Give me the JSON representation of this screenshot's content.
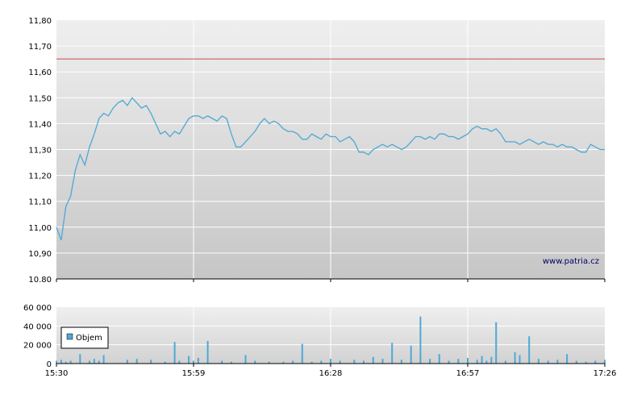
{
  "watermark": "www.patria.cz",
  "legend_label": "Objem",
  "colors": {
    "price_line": "#4ea8d6",
    "volume_bar": "#4ea8d6",
    "reference_line": "#c0504d",
    "grid": "#ffffff",
    "axis": "#000000"
  },
  "chart_data": [
    {
      "type": "line",
      "title": "",
      "xlabel": "",
      "ylabel": "",
      "ylim": [
        10.8,
        11.8
      ],
      "y_ticks": [
        "11,80",
        "11,70",
        "11,60",
        "11,50",
        "11,40",
        "11,30",
        "11,20",
        "11,10",
        "11,00",
        "10,90",
        "10.80"
      ],
      "x_ticks": [
        "15:30",
        "15:59",
        "16:28",
        "16:57",
        "17:26"
      ],
      "xlim": [
        "15:30",
        "17:26"
      ],
      "grid": true,
      "reference_line": 11.65,
      "series": [
        {
          "x": [
            "15:30",
            "15:31",
            "15:32",
            "15:33",
            "15:34",
            "15:35",
            "15:36",
            "15:37",
            "15:38",
            "15:39",
            "15:40",
            "15:41",
            "15:42",
            "15:43",
            "15:44",
            "15:45",
            "15:46",
            "15:47",
            "15:48",
            "15:49",
            "15:50",
            "15:51",
            "15:52",
            "15:53",
            "15:54",
            "15:55",
            "15:56",
            "15:57",
            "15:58",
            "15:59",
            "16:00",
            "16:01",
            "16:02",
            "16:03",
            "16:04",
            "16:05",
            "16:06",
            "16:07",
            "16:08",
            "16:09",
            "16:10",
            "16:11",
            "16:12",
            "16:13",
            "16:14",
            "16:15",
            "16:16",
            "16:17",
            "16:18",
            "16:19",
            "16:20",
            "16:21",
            "16:22",
            "16:23",
            "16:24",
            "16:25",
            "16:26",
            "16:27",
            "16:28",
            "16:29",
            "16:30",
            "16:31",
            "16:32",
            "16:33",
            "16:34",
            "16:35",
            "16:36",
            "16:37",
            "16:38",
            "16:39",
            "16:40",
            "16:41",
            "16:42",
            "16:43",
            "16:44",
            "16:45",
            "16:46",
            "16:47",
            "16:48",
            "16:49",
            "16:50",
            "16:51",
            "16:52",
            "16:53",
            "16:54",
            "16:55",
            "16:56",
            "16:57",
            "16:58",
            "16:59",
            "17:00",
            "17:01",
            "17:02",
            "17:03",
            "17:04",
            "17:05",
            "17:06",
            "17:07",
            "17:08",
            "17:09",
            "17:10",
            "17:11",
            "17:12",
            "17:13",
            "17:14",
            "17:15",
            "17:16",
            "17:17",
            "17:18",
            "17:19",
            "17:20",
            "17:21",
            "17:22",
            "17:23",
            "17:24",
            "17:25",
            "17:26"
          ],
          "values": [
            11.0,
            10.95,
            11.08,
            11.12,
            11.22,
            11.28,
            11.24,
            11.31,
            11.36,
            11.42,
            11.44,
            11.43,
            11.46,
            11.48,
            11.49,
            11.47,
            11.5,
            11.48,
            11.46,
            11.47,
            11.44,
            11.4,
            11.36,
            11.37,
            11.35,
            11.37,
            11.36,
            11.39,
            11.42,
            11.43,
            11.43,
            11.42,
            11.43,
            11.42,
            11.41,
            11.43,
            11.42,
            11.36,
            11.31,
            11.31,
            11.33,
            11.35,
            11.37,
            11.4,
            11.42,
            11.4,
            11.41,
            11.4,
            11.38,
            11.37,
            11.37,
            11.36,
            11.34,
            11.34,
            11.36,
            11.35,
            11.34,
            11.36,
            11.35,
            11.35,
            11.33,
            11.34,
            11.35,
            11.33,
            11.29,
            11.29,
            11.28,
            11.3,
            11.31,
            11.32,
            11.31,
            11.32,
            11.31,
            11.3,
            11.31,
            11.33,
            11.35,
            11.35,
            11.34,
            11.35,
            11.34,
            11.36,
            11.36,
            11.35,
            11.35,
            11.34,
            11.35,
            11.36,
            11.38,
            11.39,
            11.38,
            11.38,
            11.37,
            11.38,
            11.36,
            11.33,
            11.33,
            11.33,
            11.32,
            11.33,
            11.34,
            11.33,
            11.32,
            11.33,
            11.32,
            11.32,
            11.31,
            11.32,
            11.31,
            11.31,
            11.3,
            11.29,
            11.29,
            11.32,
            11.31,
            11.3,
            11.3
          ]
        }
      ]
    },
    {
      "type": "bar",
      "title": "",
      "xlabel": "",
      "ylabel": "",
      "ylim": [
        0,
        60000
      ],
      "y_ticks": [
        "60 000",
        "40 000",
        "20 000",
        "0"
      ],
      "x_ticks": [
        "15:30",
        "15:59",
        "16:28",
        "16:57",
        "17:26"
      ],
      "xlim": [
        "15:30",
        "17:26"
      ],
      "grid": true,
      "legend": "top-left",
      "series": [
        {
          "name": "Objem",
          "x": [
            "15:30",
            "15:31",
            "15:32",
            "15:33",
            "15:35",
            "15:37",
            "15:38",
            "15:39",
            "15:40",
            "15:45",
            "15:47",
            "15:50",
            "15:53",
            "15:55",
            "15:56",
            "15:58",
            "15:59",
            "16:00",
            "16:02",
            "16:05",
            "16:07",
            "16:10",
            "16:12",
            "16:15",
            "16:18",
            "16:20",
            "16:22",
            "16:24",
            "16:26",
            "16:28",
            "16:30",
            "16:33",
            "16:35",
            "16:37",
            "16:39",
            "16:41",
            "16:43",
            "16:45",
            "16:47",
            "16:49",
            "16:51",
            "16:53",
            "16:55",
            "16:57",
            "16:59",
            "17:00",
            "17:01",
            "17:02",
            "17:03",
            "17:05",
            "17:07",
            "17:08",
            "17:10",
            "17:12",
            "17:14",
            "17:16",
            "17:18",
            "17:20",
            "17:22",
            "17:24",
            "17:26"
          ],
          "values": [
            3000,
            4000,
            2000,
            3000,
            10000,
            3000,
            5000,
            3000,
            9000,
            4000,
            5000,
            4000,
            2000,
            23000,
            3000,
            8000,
            3000,
            6000,
            24000,
            3000,
            2000,
            9000,
            3000,
            2000,
            2000,
            3000,
            21000,
            2000,
            3000,
            5000,
            3000,
            4000,
            3000,
            7000,
            5000,
            22000,
            4000,
            19000,
            50000,
            5000,
            10000,
            3000,
            5000,
            6000,
            4000,
            8000,
            3000,
            7000,
            44000,
            3000,
            12000,
            9000,
            29000,
            5000,
            3000,
            4000,
            10000,
            3000,
            2000,
            3000,
            4000
          ]
        }
      ]
    }
  ]
}
